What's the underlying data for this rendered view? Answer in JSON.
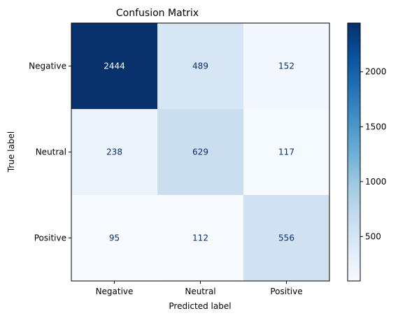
{
  "chart_data": {
    "type": "heatmap",
    "title": "Confusion Matrix",
    "xlabel": "Predicted label",
    "ylabel": "True label",
    "x_categories": [
      "Negative",
      "Neutral",
      "Positive"
    ],
    "y_categories": [
      "Negative",
      "Neutral",
      "Positive"
    ],
    "values": [
      [
        2444,
        489,
        152
      ],
      [
        238,
        629,
        117
      ],
      [
        95,
        112,
        556
      ]
    ],
    "colormap": "Blues",
    "color_range": [
      95,
      2444
    ],
    "colorbar_ticks": [
      500,
      1000,
      1500,
      2000
    ],
    "grid": false
  }
}
